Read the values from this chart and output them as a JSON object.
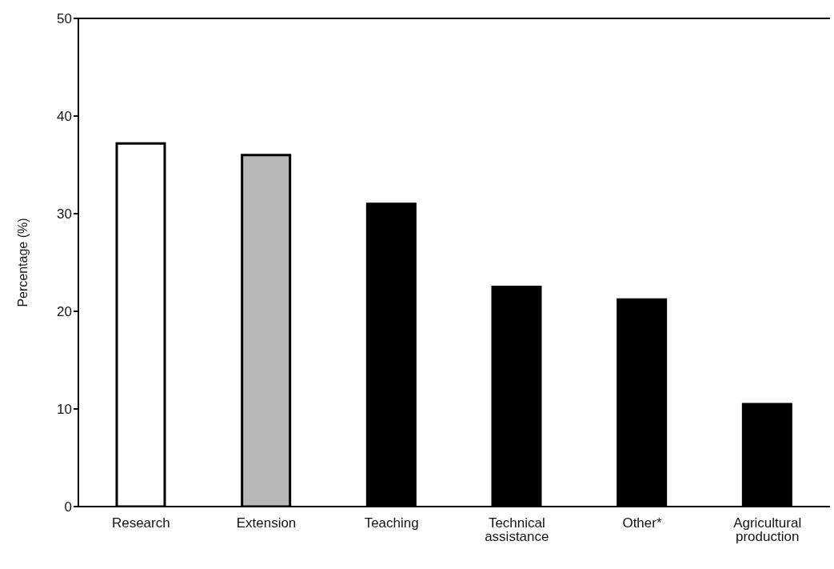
{
  "chart_data": {
    "type": "bar",
    "ylabel": "Percentage (%)",
    "categories": [
      "Research",
      "Extension",
      "Teaching",
      "Technical assistance",
      "Other*",
      "Agricultural production"
    ],
    "values": [
      37.2,
      36.0,
      31.0,
      22.5,
      21.2,
      10.5
    ],
    "colors": [
      "#ffffff",
      "#b8b8b8",
      "#000000",
      "#000000",
      "#000000",
      "#000000"
    ],
    "ylim": [
      0,
      50
    ],
    "yticks": [
      0,
      10,
      20,
      30,
      40,
      50
    ]
  }
}
